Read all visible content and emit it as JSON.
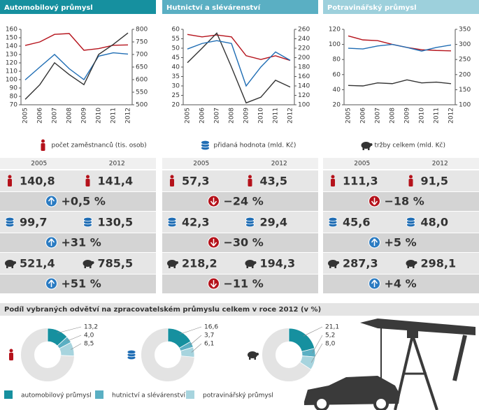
{
  "panels": [
    {
      "title": "Automobilový průmysl",
      "title_color": "#16909f",
      "legend": "počet zaměstnanců (tis. osob)",
      "summary": {
        "years": [
          "2005",
          "2012"
        ],
        "rows": [
          {
            "values": [
              "140,8",
              "141,4"
            ],
            "change": "+0,5 %",
            "direction": "up"
          },
          {
            "values": [
              "99,7",
              "130,5"
            ],
            "change": "+31 %",
            "direction": "up"
          },
          {
            "values": [
              "521,4",
              "785,5"
            ],
            "change": "+51 %",
            "direction": "up"
          }
        ]
      }
    },
    {
      "title": "Hutnictví a slévárenství",
      "title_color": "#5aafc3",
      "legend": "přidaná hodnota (mld. Kč)",
      "summary": {
        "years": [
          "2005",
          "2012"
        ],
        "rows": [
          {
            "values": [
              "57,3",
              "43,5"
            ],
            "change": "−24 %",
            "direction": "down"
          },
          {
            "values": [
              "42,3",
              "29,4"
            ],
            "change": "−30 %",
            "direction": "down"
          },
          {
            "values": [
              "218,2",
              "194,3"
            ],
            "change": "−11 %",
            "direction": "down"
          }
        ]
      }
    },
    {
      "title": "Potravinářský průmysl",
      "title_color": "#9dd0dc",
      "legend": "tržby celkem (mld. Kč)",
      "summary": {
        "years": [
          "2005",
          "2012"
        ],
        "rows": [
          {
            "values": [
              "111,3",
              "91,5"
            ],
            "change": "−18 %",
            "direction": "down"
          },
          {
            "values": [
              "45,6",
              "48,0"
            ],
            "change": "+5 %",
            "direction": "up"
          },
          {
            "values": [
              "287,3",
              "298,1"
            ],
            "change": "+4 %",
            "direction": "up"
          }
        ]
      }
    }
  ],
  "chart_data": [
    {
      "type": "line",
      "x": [
        "2005",
        "2006",
        "2007",
        "2008",
        "2009",
        "2010",
        "2011",
        "2012"
      ],
      "ylim": [
        70,
        160
      ],
      "yticks": [
        70,
        80,
        90,
        100,
        110,
        120,
        130,
        140,
        150,
        160
      ],
      "y2lim": [
        500,
        800
      ],
      "y2ticks": [
        500,
        550,
        600,
        650,
        700,
        750,
        800
      ],
      "series": [
        {
          "color": "#b5121b",
          "values": [
            140.8,
            145,
            154,
            155,
            135,
            137,
            141,
            141.4
          ]
        },
        {
          "color": "#1f6db4",
          "values": [
            99.7,
            115,
            130,
            113,
            100,
            128,
            132,
            130.5
          ]
        },
        {
          "color": "#333333",
          "axis": "y2",
          "values": [
            521.4,
            580,
            667,
            620,
            580,
            700,
            740,
            785.5
          ]
        }
      ]
    },
    {
      "type": "line",
      "x": [
        "2005",
        "2006",
        "2007",
        "2008",
        "2009",
        "2010",
        "2011",
        "2012"
      ],
      "ylim": [
        20,
        60
      ],
      "yticks": [
        20,
        25,
        30,
        35,
        40,
        45,
        50,
        55,
        60
      ],
      "y2lim": [
        100,
        260
      ],
      "y2ticks": [
        100,
        120,
        140,
        160,
        180,
        200,
        220,
        240,
        260
      ],
      "series": [
        {
          "color": "#b5121b",
          "values": [
            57.3,
            56,
            57,
            56,
            46,
            44,
            46,
            43.5
          ]
        },
        {
          "color": "#333333",
          "values": [
            42.3,
            50,
            58,
            40,
            21,
            24,
            33,
            29.4
          ]
        },
        {
          "color": "#1f6db4",
          "axis": "y2",
          "values": [
            218.2,
            230,
            236,
            230,
            140,
            180,
            212,
            194.3
          ]
        }
      ]
    },
    {
      "type": "line",
      "x": [
        "2005",
        "2006",
        "2007",
        "2008",
        "2009",
        "2010",
        "2011",
        "2012"
      ],
      "ylim": [
        20,
        120
      ],
      "yticks": [
        20,
        40,
        60,
        80,
        100,
        120
      ],
      "y2lim": [
        100,
        350
      ],
      "y2ticks": [
        100,
        150,
        200,
        250,
        300,
        350
      ],
      "series": [
        {
          "color": "#b5121b",
          "values": [
            111.3,
            106,
            105,
            100,
            96,
            93,
            92,
            91.5
          ]
        },
        {
          "color": "#333333",
          "values": [
            45.6,
            45,
            49,
            48,
            53,
            49,
            50,
            48.0
          ]
        },
        {
          "color": "#1f6db4",
          "axis": "y2",
          "values": [
            287.3,
            285,
            295,
            300,
            290,
            278,
            290,
            298.1
          ]
        }
      ]
    },
    {
      "type": "donut",
      "values": [
        13.2,
        4.0,
        8.5
      ],
      "value_labels": [
        "13,2",
        "4,0",
        "8,5"
      ]
    },
    {
      "type": "donut",
      "values": [
        16.6,
        3.7,
        6.1
      ],
      "value_labels": [
        "16,6",
        "3,7",
        "6,1"
      ]
    },
    {
      "type": "donut",
      "values": [
        21.1,
        5.2,
        8.0
      ],
      "value_labels": [
        "21,1",
        "5,2",
        "8,0"
      ]
    }
  ],
  "share": {
    "title": "Podíl vybraných odvětví na zpracovatelském průmyslu celkem v roce 2012 (v %)",
    "legend": [
      {
        "label": "automobilový průmysl",
        "color": "#16909f"
      },
      {
        "label": "hutnictví a slévárenství",
        "color": "#5aafc3"
      },
      {
        "label": "potravinářský průmysl",
        "color": "#a7d4de"
      }
    ]
  }
}
